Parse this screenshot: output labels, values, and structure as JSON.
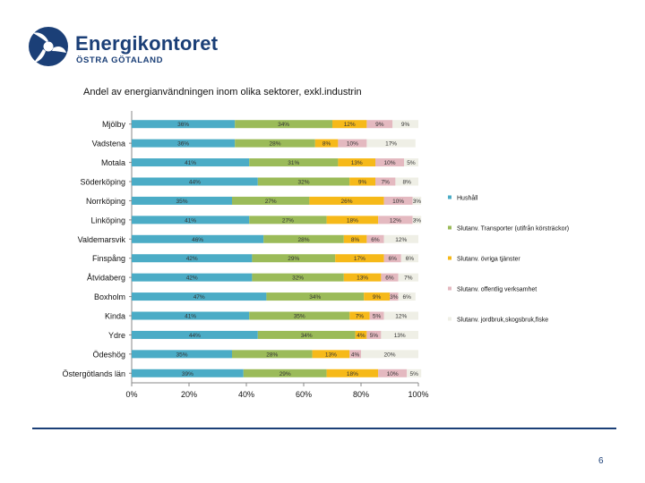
{
  "header": {
    "brand_name": "Energikontoret",
    "brand_subtitle": "ÖSTRA GÖTALAND"
  },
  "colors": {
    "series": [
      "#4bacc6",
      "#9bbb59",
      "#f6b919",
      "#e4b9c0",
      "#efefe6"
    ],
    "brand": "#1b3f77"
  },
  "page_number": "6",
  "chart_data": {
    "type": "bar",
    "orientation": "horizontal",
    "stacked": "percent",
    "title": "Andel av energianvändningen inom olika sektorer, exkl.industrin",
    "categories": [
      "Mjölby",
      "Vadstena",
      "Motala",
      "Söderköping",
      "Norrköping",
      "Linköping",
      "Valdemarsvik",
      "Finspång",
      "Åtvidaberg",
      "Boxholm",
      "Kinda",
      "Ydre",
      "Ödeshög",
      "Östergötlands län"
    ],
    "series": [
      {
        "name": "Hushåll",
        "values": [
          36,
          36,
          41,
          44,
          35,
          41,
          46,
          42,
          42,
          47,
          41,
          44,
          35,
          39
        ],
        "labels": [
          "36%",
          "36%",
          "41%",
          "44%",
          "35%",
          "41%",
          "46%",
          "42%",
          "42%",
          "47%",
          "41%",
          "44%",
          "35%",
          "39%"
        ]
      },
      {
        "name": "Slutanv. Transporter (utifrån körsträckor)",
        "values": [
          34,
          28,
          31,
          32,
          27,
          27,
          28,
          29,
          32,
          34,
          35,
          34,
          28,
          29
        ],
        "labels": [
          "34%",
          "28%",
          "31%",
          "32%",
          "27%",
          "27%",
          "28%",
          "29%",
          "32%",
          "34%",
          "35%",
          "34%",
          "28%",
          "29%"
        ]
      },
      {
        "name": "Slutanv. övriga tjänster",
        "values": [
          12,
          8,
          13,
          9,
          26,
          18,
          8,
          17,
          13,
          9,
          7,
          4,
          13,
          18
        ],
        "labels": [
          "12%",
          "8%",
          "13%",
          "9%",
          "26%",
          "18%",
          "8%",
          "17%",
          "13%",
          "9%",
          "7%",
          "4%",
          "13%",
          "18%"
        ]
      },
      {
        "name": "Slutanv. offentlig verksamhet",
        "values": [
          9,
          10,
          10,
          7,
          10,
          12,
          6,
          6,
          6,
          3,
          5,
          5,
          4,
          10
        ],
        "labels": [
          "9%",
          "10%",
          "10%",
          "7%",
          "10%",
          "12%",
          "6%",
          "6%",
          "6%",
          "3%",
          "5%",
          "5%",
          "4%",
          "10%"
        ]
      },
      {
        "name": "Slutanv. jordbruk,skogsbruk,fiske",
        "values": [
          9,
          17,
          5,
          8,
          3,
          3,
          12,
          6,
          7,
          6,
          12,
          13,
          20,
          5
        ],
        "labels": [
          "9%",
          "17%",
          "5%",
          "8%",
          "3%",
          "3%",
          "12%",
          "6%",
          "7%",
          "6%",
          "12%",
          "13%",
          "20%",
          "5%"
        ]
      }
    ],
    "x_ticks": [
      "0%",
      "20%",
      "40%",
      "60%",
      "80%",
      "100%"
    ],
    "xlim": [
      0,
      100
    ],
    "grid": false,
    "legend": "right"
  }
}
